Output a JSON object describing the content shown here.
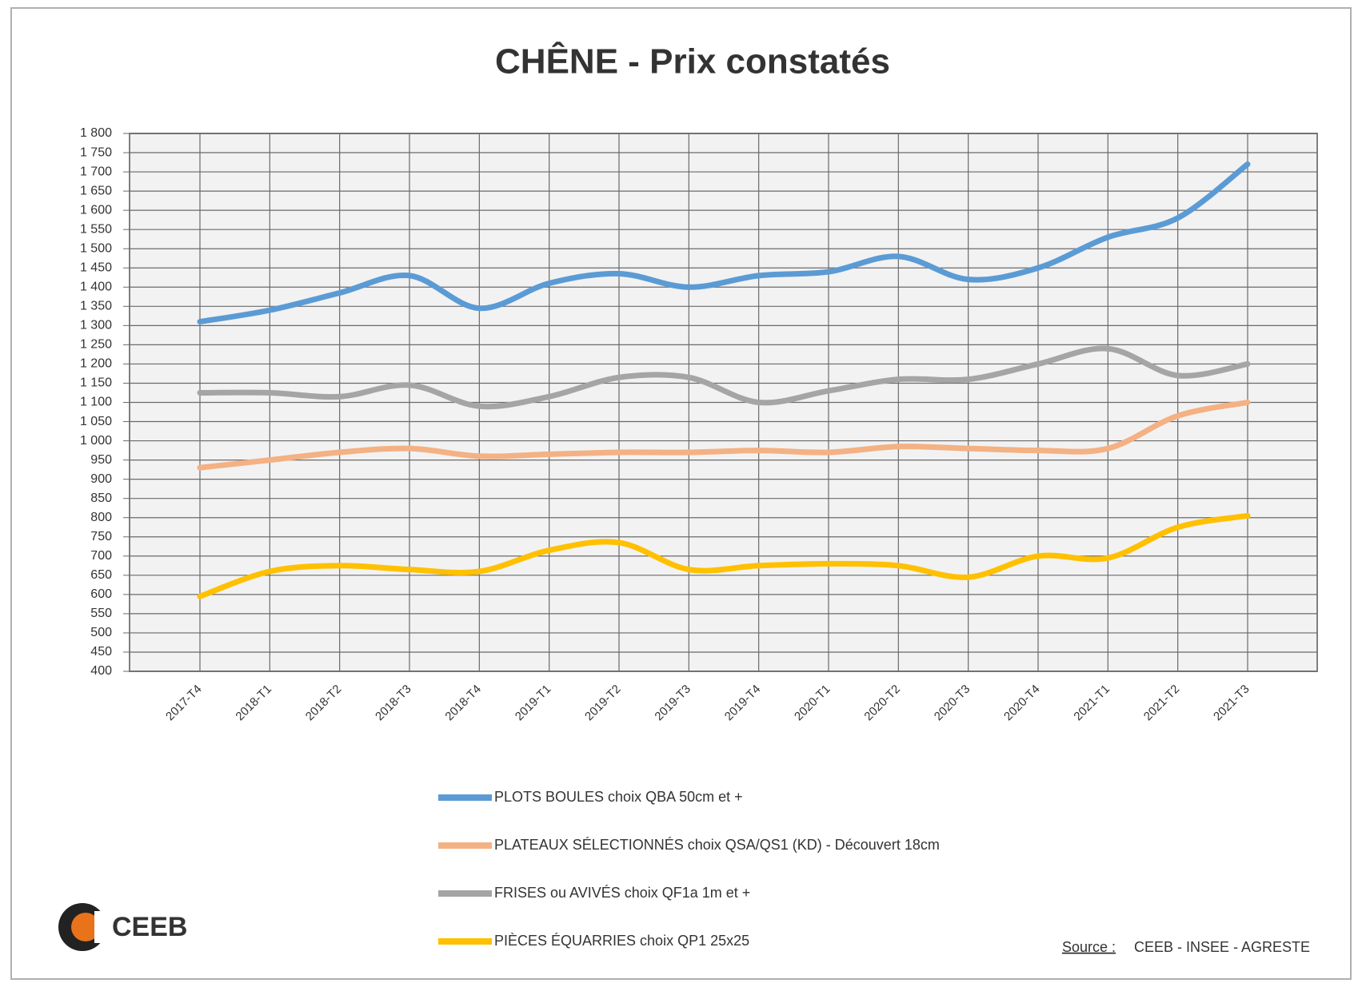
{
  "chart_data": {
    "type": "line",
    "title": "CHÊNE - Prix constatés",
    "categories": [
      "2017-T4",
      "2018-T1",
      "2018-T2",
      "2018-T3",
      "2018-T4",
      "2019-T1",
      "2019-T2",
      "2019-T3",
      "2019-T4",
      "2020-T1",
      "2020-T2",
      "2020-T3",
      "2020-T4",
      "2021-T1",
      "2021-T2",
      "2021-T3"
    ],
    "series": [
      {
        "name": "PLOTS BOULES choix QBA  50cm et +",
        "color": "#5b9bd5",
        "values": [
          1310,
          1340,
          1385,
          1430,
          1345,
          1410,
          1435,
          1400,
          1430,
          1440,
          1480,
          1420,
          1450,
          1530,
          1580,
          1720
        ]
      },
      {
        "name": "PLATEAUX SÉLECTIONNÉS choix QSA/QS1 (KD) - Découvert 18cm",
        "color": "#f4b183",
        "values": [
          930,
          950,
          970,
          980,
          960,
          965,
          970,
          970,
          975,
          970,
          985,
          980,
          975,
          980,
          1065,
          1100
        ]
      },
      {
        "name": "FRISES ou AVIVÉS choix QF1a 1m et +",
        "color": "#a5a5a5",
        "values": [
          1125,
          1125,
          1115,
          1145,
          1090,
          1115,
          1165,
          1165,
          1100,
          1130,
          1160,
          1160,
          1200,
          1240,
          1170,
          1200
        ]
      },
      {
        "name": "PIÈCES ÉQUARRIES choix QP1 25x25",
        "color": "#ffc000",
        "values": [
          595,
          660,
          675,
          665,
          660,
          715,
          735,
          665,
          675,
          680,
          675,
          645,
          700,
          695,
          775,
          805
        ]
      }
    ],
    "ylim": [
      400,
      1800
    ],
    "yticks": [
      400,
      450,
      500,
      550,
      600,
      650,
      700,
      750,
      800,
      850,
      900,
      950,
      {
        "value": 1000,
        "label": "1 000"
      },
      {
        "value": 1050,
        "label": "1 050"
      },
      {
        "value": 1100,
        "label": "1 100"
      },
      {
        "value": 1150,
        "label": "1 150"
      },
      {
        "value": 1200,
        "label": "1 200"
      },
      {
        "value": 1250,
        "label": "1 250"
      },
      {
        "value": 1300,
        "label": "1 300"
      },
      {
        "value": 1350,
        "label": "1 350"
      },
      {
        "value": 1400,
        "label": "1 400"
      },
      {
        "value": 1450,
        "label": "1 450"
      },
      {
        "value": 1500,
        "label": "1 500"
      },
      {
        "value": 1550,
        "label": "1 550"
      },
      {
        "value": 1600,
        "label": "1 600"
      },
      {
        "value": 1650,
        "label": "1 650"
      },
      {
        "value": 1700,
        "label": "1 700"
      },
      {
        "value": 1750,
        "label": "1 750"
      },
      {
        "value": 1800,
        "label": "1 800"
      }
    ],
    "grid": true
  },
  "logo": "CEEB",
  "source": {
    "label": "Source :",
    "text": "CEEB - INSEE - AGRESTE"
  }
}
